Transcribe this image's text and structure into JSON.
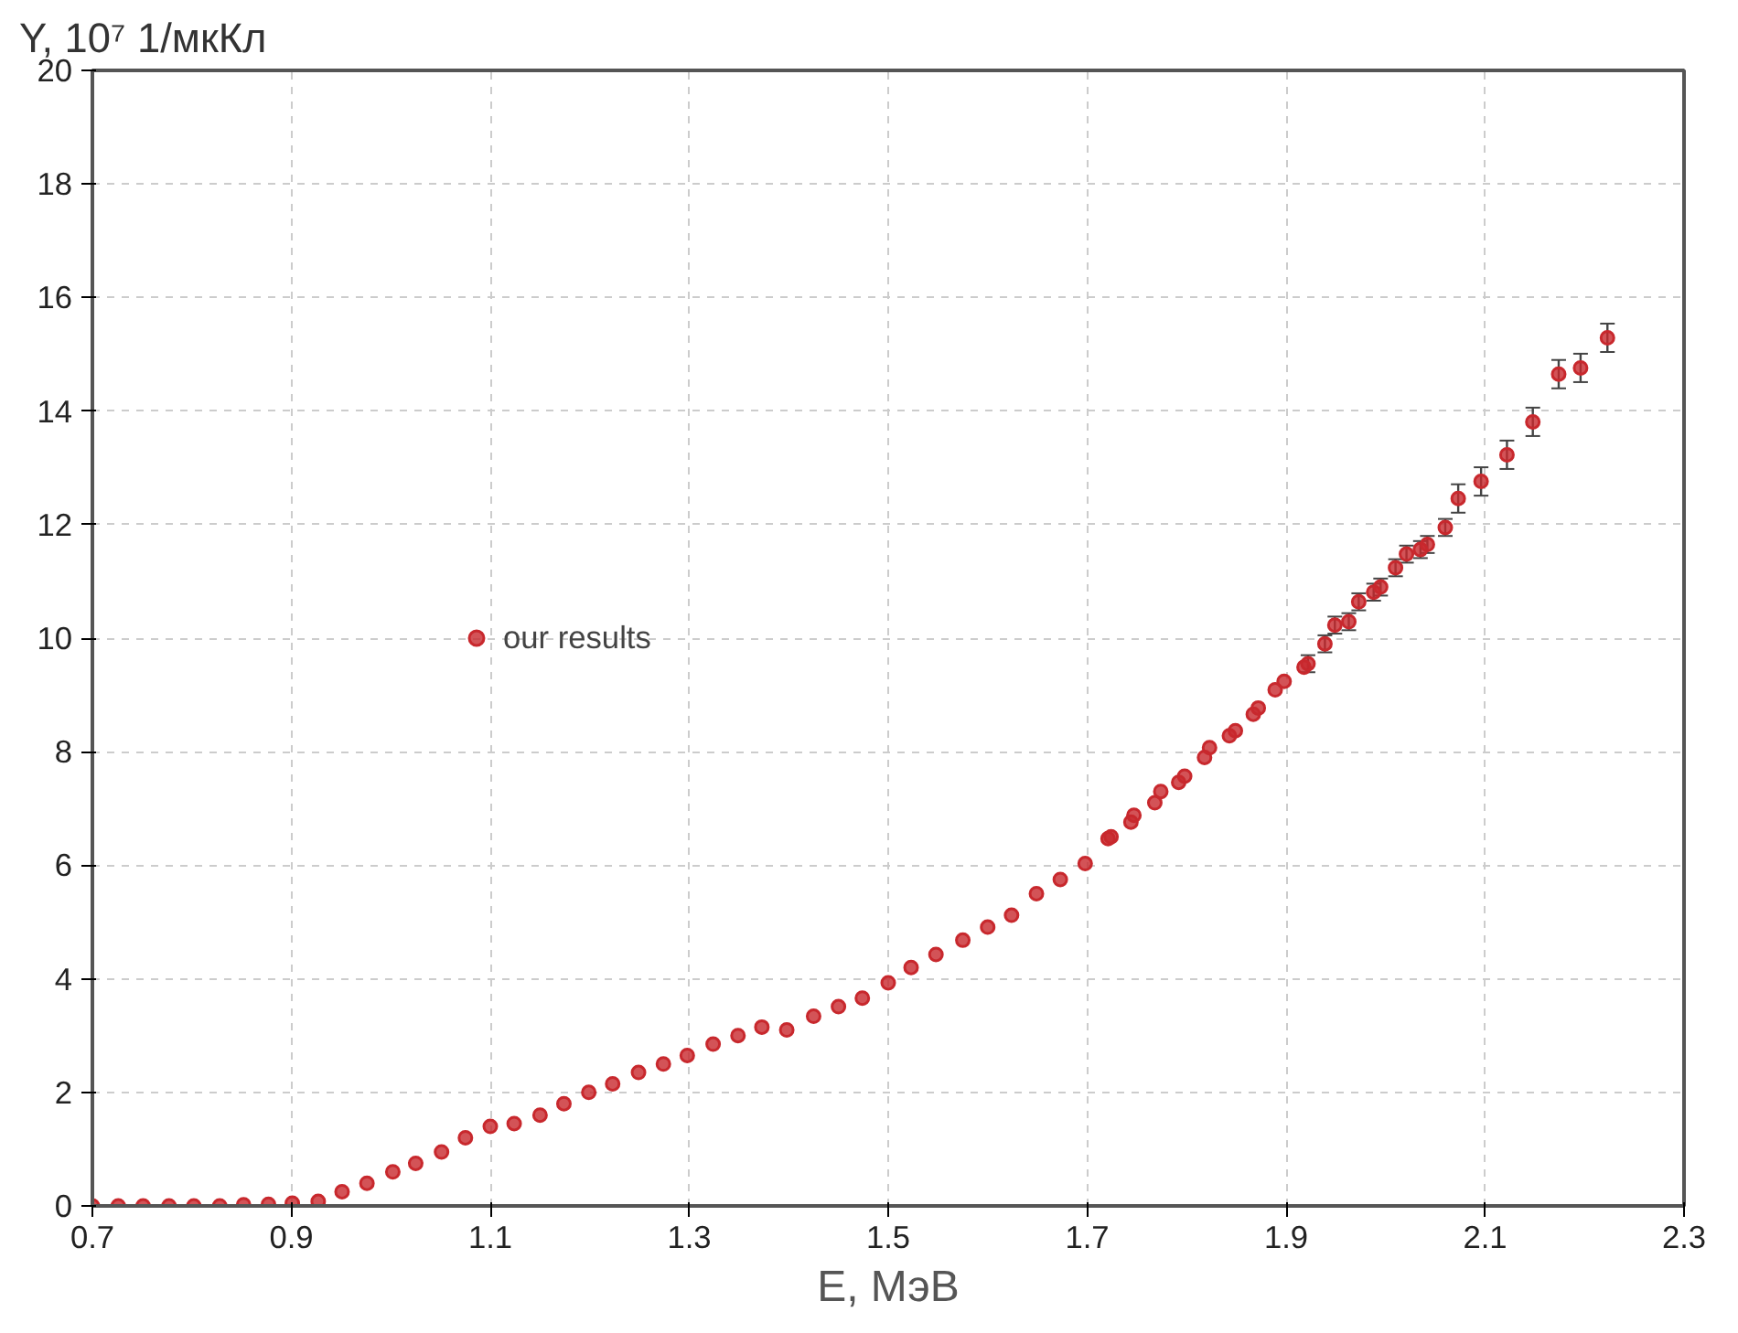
{
  "chart_data": {
    "type": "scatter",
    "xlabel": "E, МэВ",
    "ylabel": "Y, 10⁷ 1/мкКл",
    "x": [
      0.7,
      0.726,
      0.751,
      0.777,
      0.802,
      0.828,
      0.852,
      0.877,
      0.901,
      0.927,
      0.951,
      0.976,
      1.002,
      1.025,
      1.051,
      1.075,
      1.1,
      1.124,
      1.15,
      1.174,
      1.199,
      1.223,
      1.249,
      1.274,
      1.298,
      1.324,
      1.349,
      1.373,
      1.398,
      1.425,
      1.45,
      1.474,
      1.5,
      1.523,
      1.548,
      1.575,
      1.6,
      1.624,
      1.649,
      1.673,
      1.698,
      1.721,
      1.724,
      1.744,
      1.747,
      1.768,
      1.774,
      1.792,
      1.798,
      1.818,
      1.823,
      1.843,
      1.849,
      1.867,
      1.872,
      1.889,
      1.898,
      1.918,
      1.922,
      1.939,
      1.949,
      1.963,
      1.973,
      1.988,
      1.995,
      2.01,
      2.021,
      2.035,
      2.042,
      2.06,
      2.073,
      2.096,
      2.122,
      2.148,
      2.174,
      2.196,
      2.223
    ],
    "series": [
      {
        "name": "our results",
        "color": "#c8282d",
        "values": [
          0,
          0,
          0,
          0,
          0,
          0,
          0.02,
          0.03,
          0.05,
          0.08,
          0.25,
          0.4,
          0.6,
          0.75,
          0.95,
          1.2,
          1.4,
          1.45,
          1.6,
          1.8,
          2.0,
          2.15,
          2.35,
          2.5,
          2.65,
          2.85,
          3.0,
          3.15,
          3.1,
          3.34,
          3.51,
          3.66,
          3.93,
          4.2,
          4.43,
          4.68,
          4.91,
          5.12,
          5.5,
          5.75,
          6.03,
          6.47,
          6.5,
          6.76,
          6.88,
          7.1,
          7.3,
          7.46,
          7.57,
          7.9,
          8.07,
          8.28,
          8.37,
          8.66,
          8.77,
          9.09,
          9.24,
          9.49,
          9.55,
          9.9,
          10.23,
          10.29,
          10.64,
          10.81,
          10.9,
          11.24,
          11.48,
          11.56,
          11.65,
          11.95,
          12.46,
          12.76,
          13.23,
          13.81,
          14.65,
          14.76,
          15.29
        ],
        "errors": [
          null,
          null,
          null,
          null,
          null,
          null,
          null,
          null,
          null,
          null,
          null,
          null,
          null,
          null,
          null,
          null,
          null,
          null,
          null,
          null,
          null,
          null,
          null,
          null,
          null,
          null,
          null,
          null,
          null,
          null,
          null,
          null,
          null,
          null,
          null,
          null,
          null,
          null,
          null,
          null,
          null,
          null,
          null,
          null,
          null,
          null,
          null,
          null,
          null,
          null,
          null,
          null,
          null,
          null,
          null,
          null,
          null,
          null,
          0.15,
          0.15,
          0.15,
          0.15,
          0.15,
          0.15,
          0.15,
          0.15,
          0.15,
          0.15,
          0.15,
          0.15,
          0.25,
          0.25,
          0.25,
          0.25,
          0.25,
          0.25,
          0.25
        ]
      }
    ],
    "xlim": [
      0.7,
      2.3
    ],
    "ylim": [
      0,
      20
    ],
    "xticks": [
      0.7,
      0.9,
      1.1,
      1.3,
      1.5,
      1.7,
      1.9,
      2.1,
      2.3
    ],
    "yticks": [
      0,
      2,
      4,
      6,
      8,
      10,
      12,
      14,
      16,
      18,
      20
    ],
    "grid": true,
    "legend": "left",
    "marker": "circle"
  }
}
